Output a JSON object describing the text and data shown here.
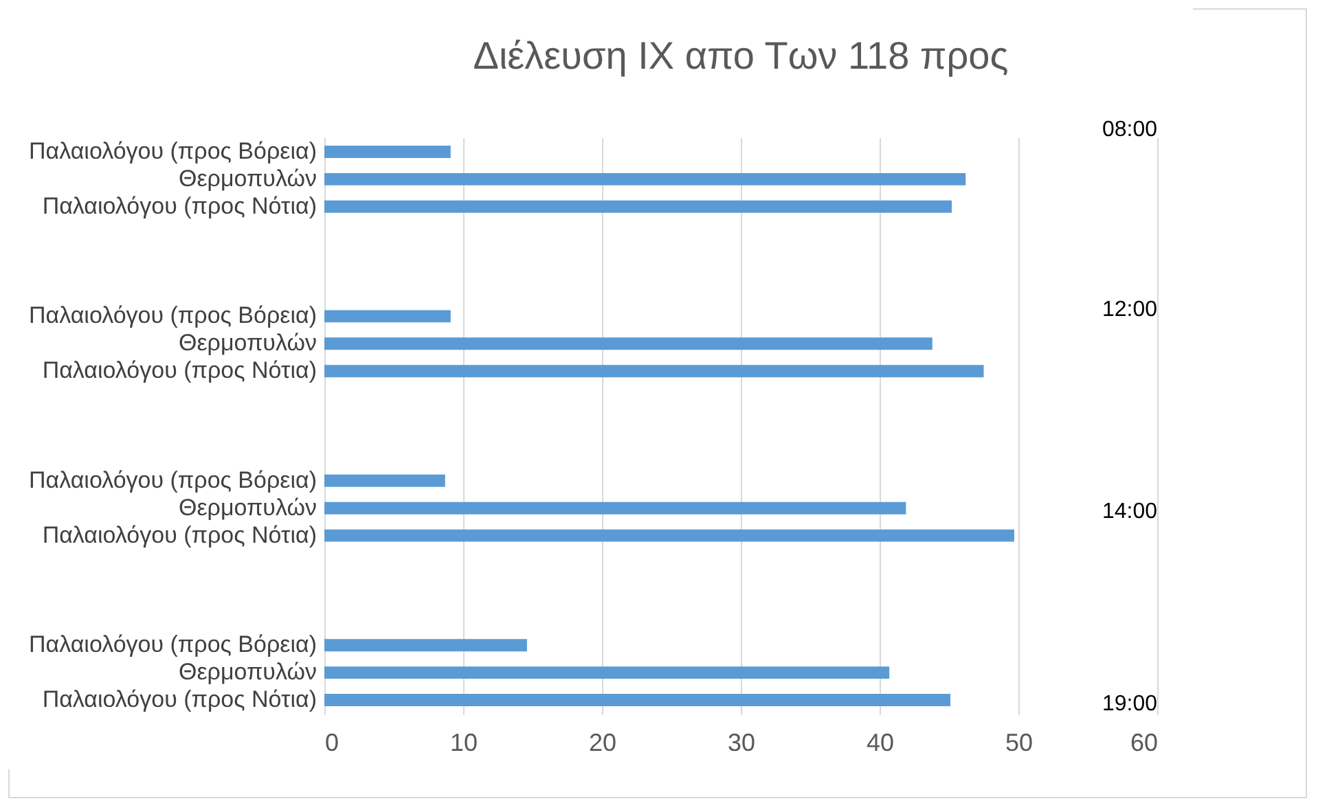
{
  "chart_data": {
    "type": "bar",
    "orientation": "horizontal",
    "title": "Διέλευση ΙΧ απο Των 118  προς",
    "categories": [
      "Παλαιολόγου (προς Βόρεια)",
      "Θερμοπυλών",
      "Παλαιολόγου (προς Νότια)",
      null,
      null,
      null,
      "Παλαιολόγου (προς Βόρεια)",
      "Θερμοπυλών",
      "Παλαιολόγου (προς Νότια)",
      null,
      null,
      null,
      "Παλαιολόγου (προς Βόρεια)",
      "Θερμοπυλών",
      "Παλαιολόγου (προς Νότια)",
      null,
      null,
      null,
      "Παλαιολόγου (προς Βόρεια)",
      "Θερμοπυλών",
      "Παλαιολόγου (προς Νότια)"
    ],
    "values": [
      9.1,
      46.2,
      45.2,
      null,
      null,
      null,
      9.1,
      43.8,
      47.5,
      null,
      null,
      null,
      8.7,
      41.9,
      49.7,
      null,
      null,
      null,
      14.6,
      40.7,
      45.1
    ],
    "color": "#5b9bd5",
    "xlim": [
      0,
      60
    ],
    "xticks": [
      0,
      10,
      20,
      30,
      40,
      50,
      60
    ],
    "grid": "x",
    "annotations": [
      "08:00",
      "12:00",
      "14:00",
      "19:00"
    ]
  }
}
